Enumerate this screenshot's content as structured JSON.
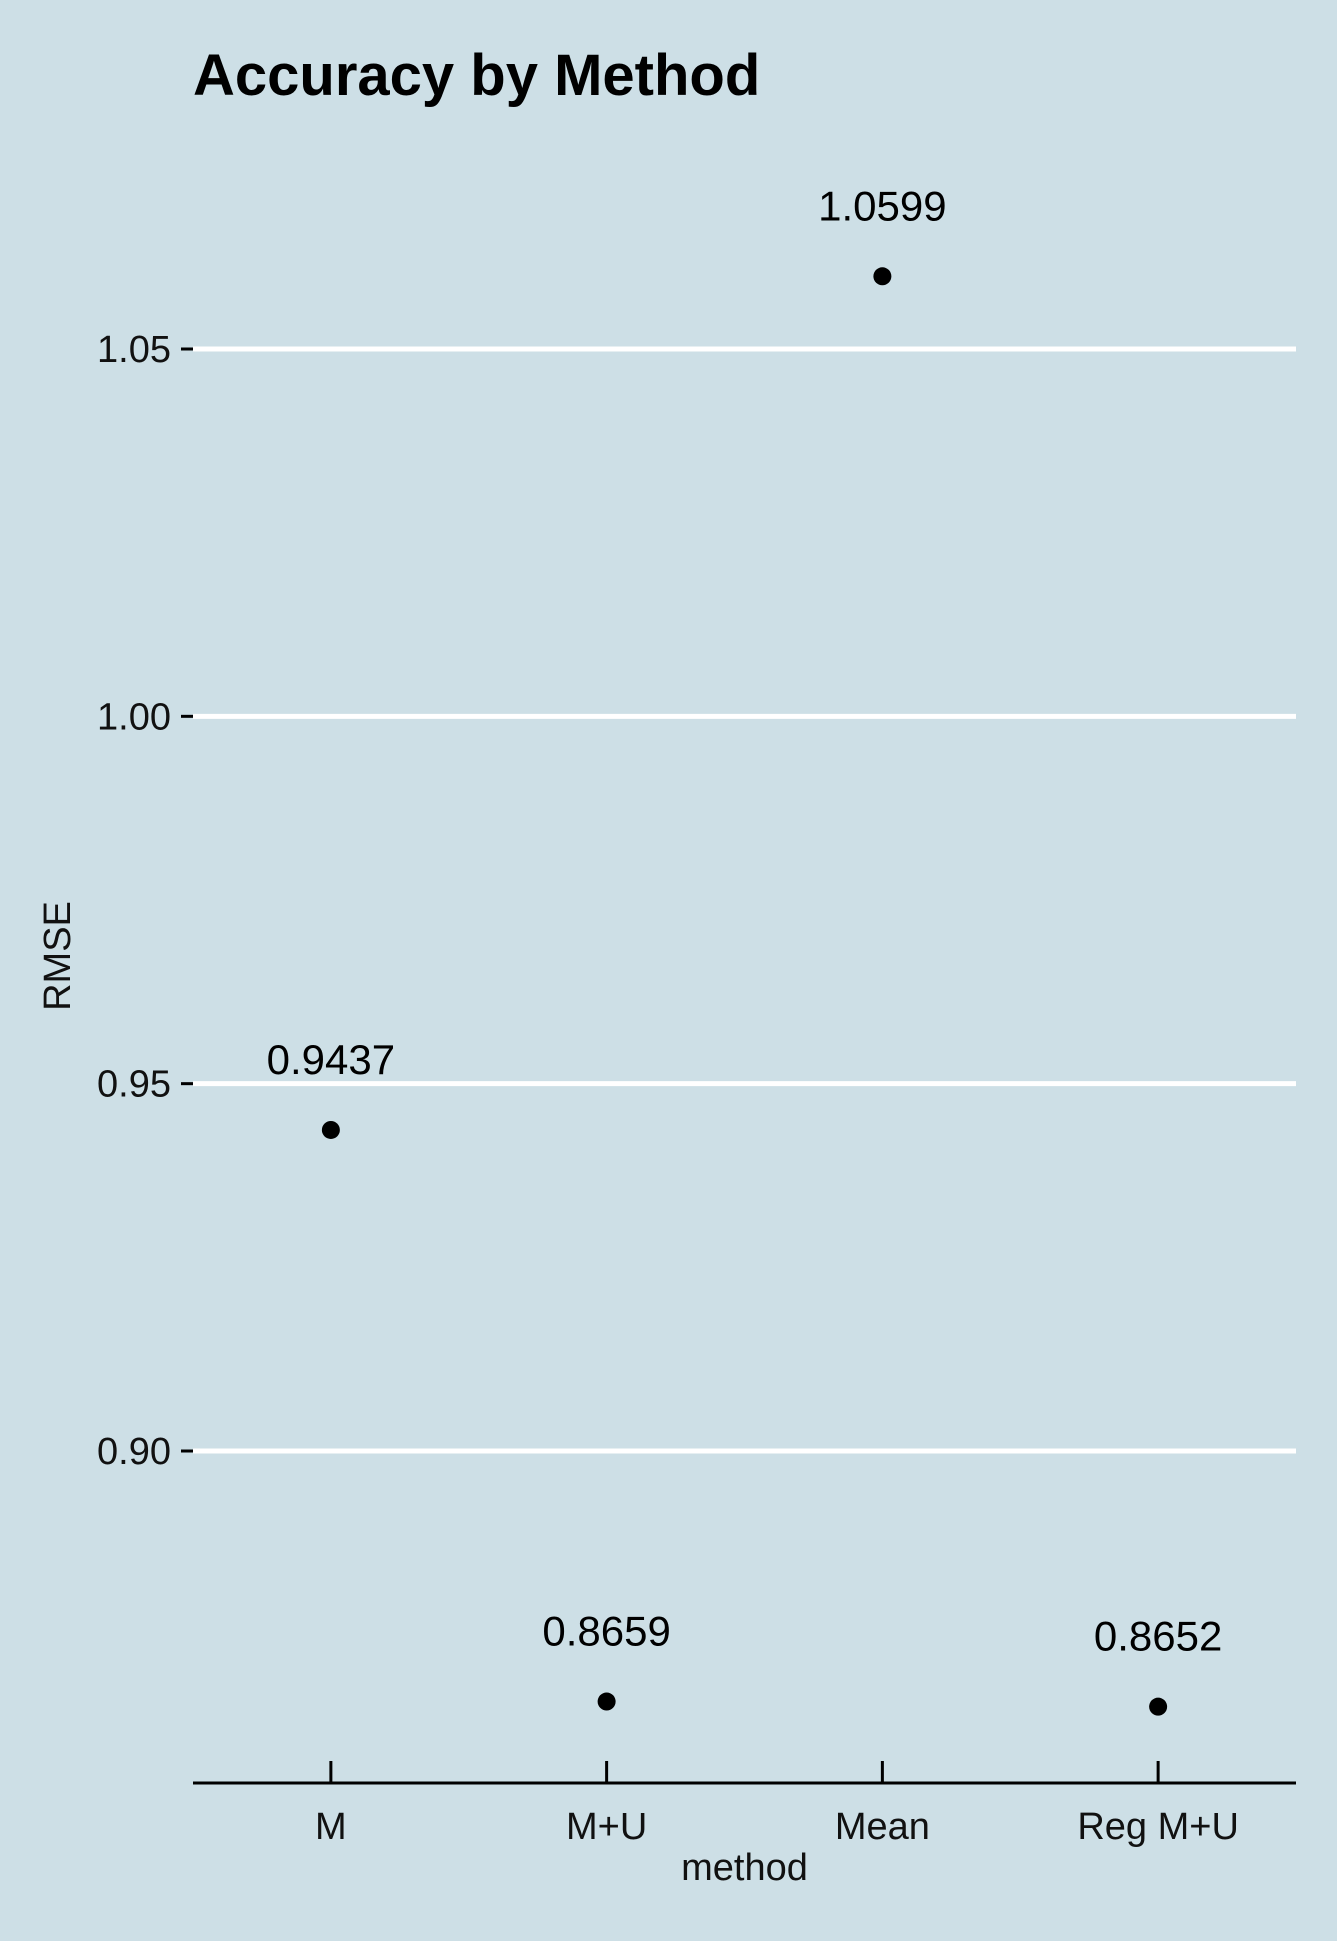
{
  "chart_data": {
    "type": "scatter",
    "title": "Accuracy by Method",
    "xlabel": "method",
    "ylabel": "RMSE",
    "categories": [
      "M",
      "M+U",
      "Mean",
      "Reg M+U"
    ],
    "values": [
      0.9437,
      0.8659,
      1.0599,
      0.8652
    ],
    "data_labels": [
      "0.9437",
      "0.8659",
      "1.0599",
      "0.8652"
    ],
    "yticks": [
      0.9,
      0.95,
      1.0,
      1.05
    ],
    "ytick_labels": [
      "0.90",
      "0.95",
      "1.00",
      "1.05"
    ],
    "ylim": [
      0.855,
      1.0725
    ],
    "grid": "horizontal major lines",
    "legend": "none",
    "colors": {
      "background": "#cddfe6",
      "grid": "#ffffff",
      "points": "#000000",
      "axis": "#000000"
    }
  }
}
